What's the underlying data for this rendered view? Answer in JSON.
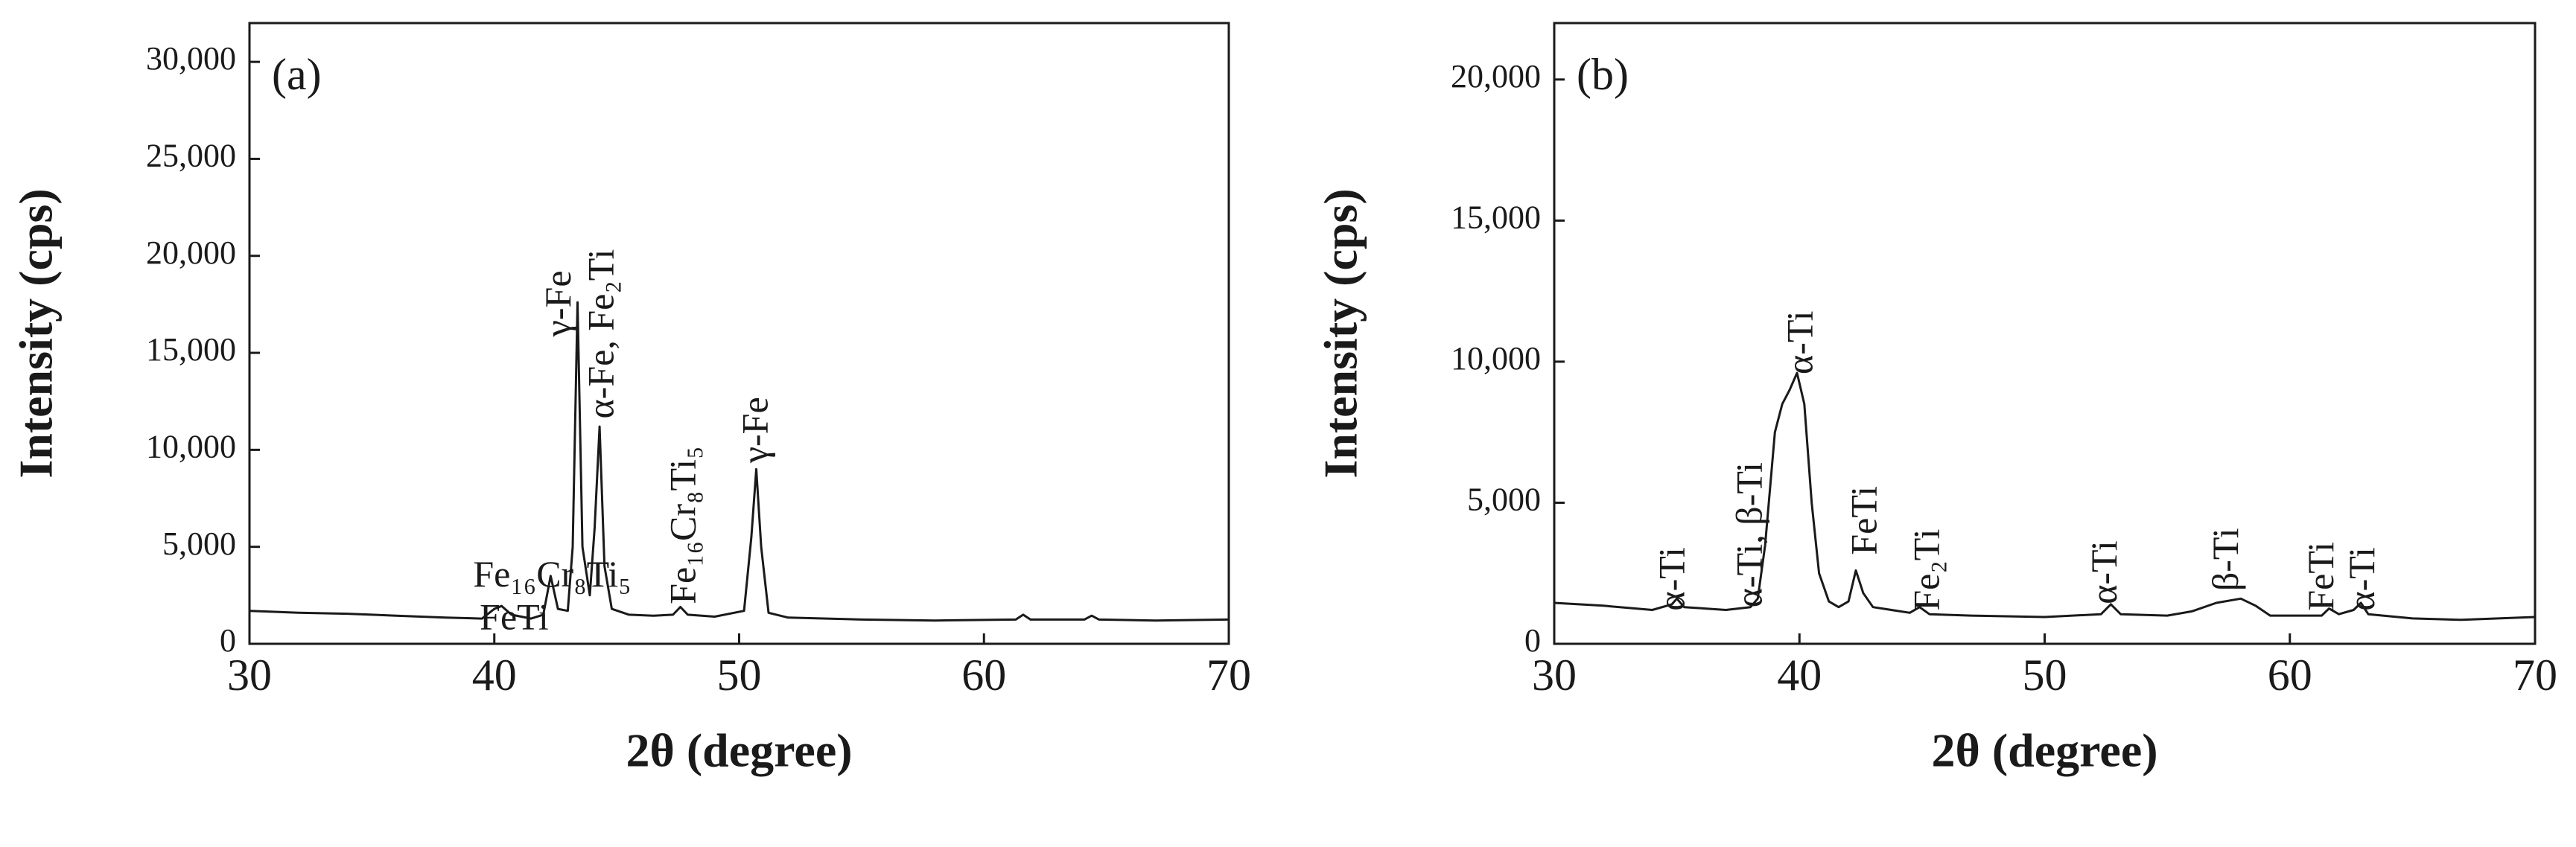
{
  "chart_data": [
    {
      "type": "line",
      "panel_label": "(a)",
      "xlabel": "2θ (degree)",
      "ylabel": "Intensity (cps)",
      "color": "#1a1a1a",
      "xlim": [
        30,
        70
      ],
      "xticks": [
        30,
        40,
        50,
        60,
        70
      ],
      "ylim": [
        0,
        32000
      ],
      "yticks": [
        0,
        {
          "value": 5000,
          "label": "5,000"
        },
        {
          "value": 10000,
          "label": "10,000"
        },
        {
          "value": 15000,
          "label": "15,000"
        },
        {
          "value": 20000,
          "label": "20,000"
        },
        {
          "value": 25000,
          "label": "25,000"
        },
        {
          "value": 30000,
          "label": "30,000"
        }
      ],
      "x": [
        30,
        32,
        34,
        36,
        38,
        39.5,
        40.0,
        40.3,
        40.7,
        41.5,
        42.0,
        42.3,
        42.6,
        43.0,
        43.2,
        43.4,
        43.6,
        43.9,
        44.1,
        44.3,
        44.5,
        44.8,
        45.5,
        46.5,
        47.3,
        47.6,
        47.9,
        49,
        50.2,
        50.5,
        50.7,
        50.9,
        51.2,
        52,
        55,
        58,
        61.3,
        61.6,
        61.9,
        64.1,
        64.4,
        64.7,
        67,
        70
      ],
      "values": [
        1700,
        1600,
        1550,
        1450,
        1350,
        1300,
        1800,
        1950,
        1500,
        1300,
        1500,
        3500,
        1800,
        1700,
        5000,
        17600,
        5000,
        2500,
        6000,
        11200,
        4000,
        1800,
        1500,
        1450,
        1500,
        1900,
        1500,
        1400,
        1700,
        5500,
        9000,
        5000,
        1600,
        1350,
        1250,
        1200,
        1250,
        1500,
        1250,
        1250,
        1450,
        1250,
        1200,
        1250
      ],
      "annotations": [
        "Fe₁₆Cr₈Ti₅",
        "FeTi",
        "γ-Fe",
        "α-Fe, Fe₂Ti",
        "Fe₁₆Cr₈Ti₅",
        "γ-Fe"
      ]
    },
    {
      "type": "line",
      "panel_label": "(b)",
      "xlabel": "2θ (degree)",
      "ylabel": "Intensity (cps)",
      "color": "#1a1a1a",
      "xlim": [
        30,
        70
      ],
      "xticks": [
        30,
        40,
        50,
        60,
        70
      ],
      "ylim": [
        0,
        22000
      ],
      "yticks": [
        0,
        {
          "value": 5000,
          "label": "5,000"
        },
        {
          "value": 10000,
          "label": "10,000"
        },
        {
          "value": 15000,
          "label": "15,000"
        },
        {
          "value": 20000,
          "label": "20,000"
        }
      ],
      "x": [
        30,
        32,
        34,
        34.8,
        35.0,
        35.3,
        37,
        38.0,
        38.3,
        38.6,
        39.0,
        39.3,
        39.6,
        39.9,
        40.2,
        40.5,
        40.8,
        41.2,
        41.6,
        42.0,
        42.3,
        42.6,
        43.0,
        44.5,
        44.9,
        45.3,
        47,
        50,
        52.3,
        52.7,
        53.1,
        55,
        56,
        57,
        58,
        58.6,
        59.2,
        61.3,
        61.6,
        62,
        62.6,
        62.9,
        63.2,
        65,
        67,
        70
      ],
      "values": [
        1450,
        1350,
        1200,
        1400,
        1600,
        1300,
        1200,
        1300,
        1600,
        3500,
        7500,
        8500,
        9000,
        9600,
        8500,
        5000,
        2500,
        1500,
        1300,
        1500,
        2600,
        1800,
        1300,
        1100,
        1300,
        1050,
        1000,
        950,
        1050,
        1400,
        1050,
        1000,
        1150,
        1450,
        1600,
        1350,
        1000,
        1000,
        1250,
        1050,
        1200,
        1450,
        1050,
        900,
        850,
        950
      ],
      "annotations": [
        "α-Ti",
        "α-Ti, β-Ti",
        "α-Ti",
        "FeTi",
        "Fe₂Ti",
        "α-Ti",
        "β-Ti",
        "FeTi",
        "α-Ti"
      ]
    }
  ]
}
